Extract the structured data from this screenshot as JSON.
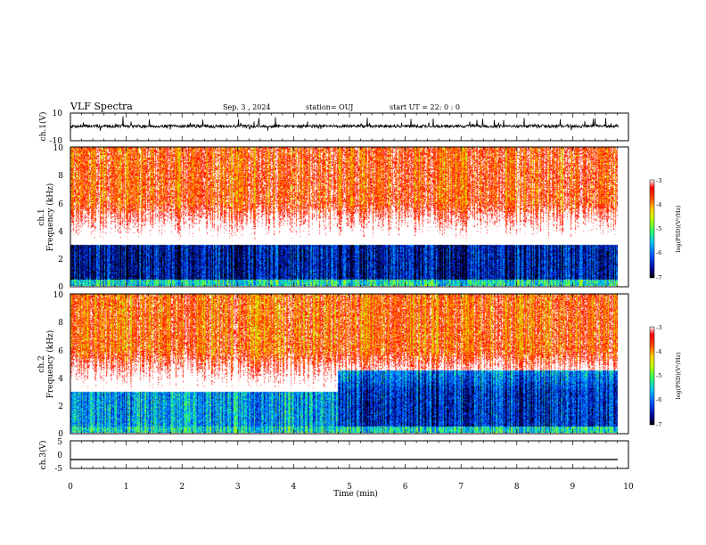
{
  "header": {
    "title": "VLF Spectra",
    "date": "Sep. 3 , 2024",
    "station": "station= OUJ",
    "start": "start  UT =   22: 0  : 0"
  },
  "chart_data": [
    {
      "type": "line",
      "panel": "ch1-waveform",
      "ylabel": "ch.1(V)",
      "ylim": [
        -10,
        10
      ],
      "yticks": [
        "10",
        "-10"
      ],
      "xlim": [
        0,
        10
      ],
      "baseline_value": 0.5,
      "noise_amplitude": 2.2
    },
    {
      "type": "heatmap",
      "panel": "ch1-spectrogram",
      "ylabel_line1": "ch.1",
      "ylabel_line2": "Frequency (kHz)",
      "ylim": [
        0,
        10
      ],
      "yticks": [
        "0",
        "2",
        "4",
        "6",
        "8",
        "10"
      ],
      "xlim": [
        0,
        9.85
      ],
      "colorbar": {
        "label": "log(PSD)(V²/Hz)",
        "range": [
          -7,
          -3
        ],
        "ticks": [
          "-3",
          "-4",
          "-5",
          "-6",
          "-7"
        ]
      },
      "description_values": {
        "high_freq_level": -3.2,
        "low_band_level": -6.5,
        "low_band_khz": [
          0.5,
          3.0
        ]
      }
    },
    {
      "type": "heatmap",
      "panel": "ch2-spectrogram",
      "ylabel_line1": "ch.2",
      "ylabel_line2": "Frequency (kHz)",
      "ylim": [
        0,
        10
      ],
      "yticks": [
        "0",
        "2",
        "4",
        "6",
        "8",
        "10"
      ],
      "xlim": [
        0,
        9.85
      ],
      "colorbar": {
        "label": "log(PSD)(V²/Hz)",
        "range": [
          -7,
          -3
        ],
        "ticks": [
          "-3",
          "-4",
          "-5",
          "-6",
          "-7"
        ]
      },
      "description_values": {
        "high_freq_level": -3.3,
        "low_band_level": -5.6,
        "quiet_after_min": 4.8,
        "quiet_level": -6.3
      }
    },
    {
      "type": "line",
      "panel": "ch3-waveform",
      "ylabel": "ch.3(V)",
      "ylim": [
        -5,
        5
      ],
      "yticks": [
        "5",
        "0",
        "-5"
      ],
      "xlim": [
        0,
        10
      ],
      "constant_value": -1.8
    }
  ],
  "xaxis": {
    "label": "Time  (min)",
    "ticks": [
      "0",
      "1",
      "2",
      "3",
      "4",
      "5",
      "6",
      "7",
      "8",
      "9",
      "10"
    ],
    "range": [
      0,
      10
    ]
  },
  "colors": {
    "line": "#000000",
    "frame": "#000000"
  }
}
